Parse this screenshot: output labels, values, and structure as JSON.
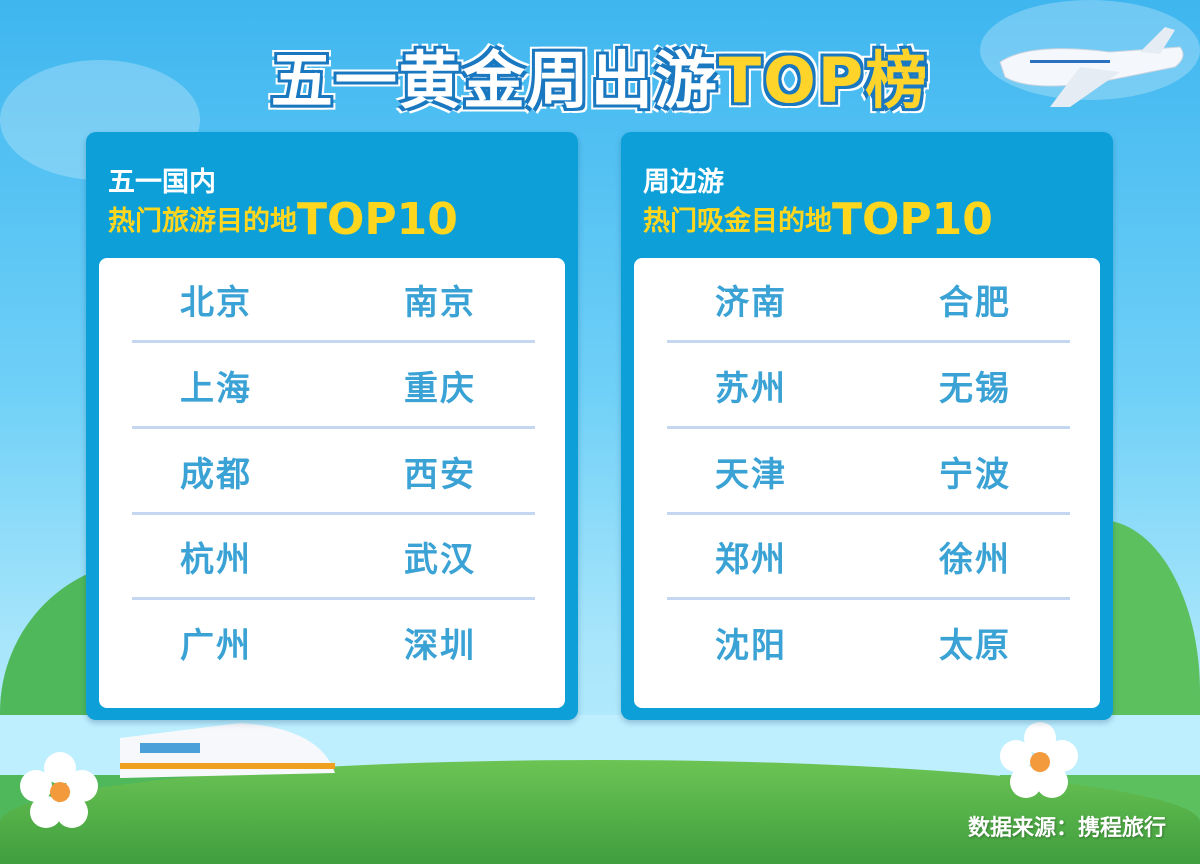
{
  "title": {
    "main": "五一黄金周出游",
    "highlight": "TOP榜"
  },
  "panels": [
    {
      "heading": "五一国内",
      "subtitle": "热门旅游目的地",
      "subtitle_highlight": "TOP10",
      "rows": [
        [
          "北京",
          "南京"
        ],
        [
          "上海",
          "重庆"
        ],
        [
          "成都",
          "西安"
        ],
        [
          "杭州",
          "武汉"
        ],
        [
          "广州",
          "深圳"
        ]
      ]
    },
    {
      "heading": "周边游",
      "subtitle": "热门吸金目的地",
      "subtitle_highlight": "TOP10",
      "rows": [
        [
          "济南",
          "合肥"
        ],
        [
          "苏州",
          "无锡"
        ],
        [
          "天津",
          "宁波"
        ],
        [
          "郑州",
          "徐州"
        ],
        [
          "沈阳",
          "太原"
        ]
      ]
    }
  ],
  "source": "数据来源：携程旅行",
  "colors": {
    "panel": "#0d9fd8",
    "city_text": "#3aa2d4",
    "highlight": "#ffd61e"
  }
}
